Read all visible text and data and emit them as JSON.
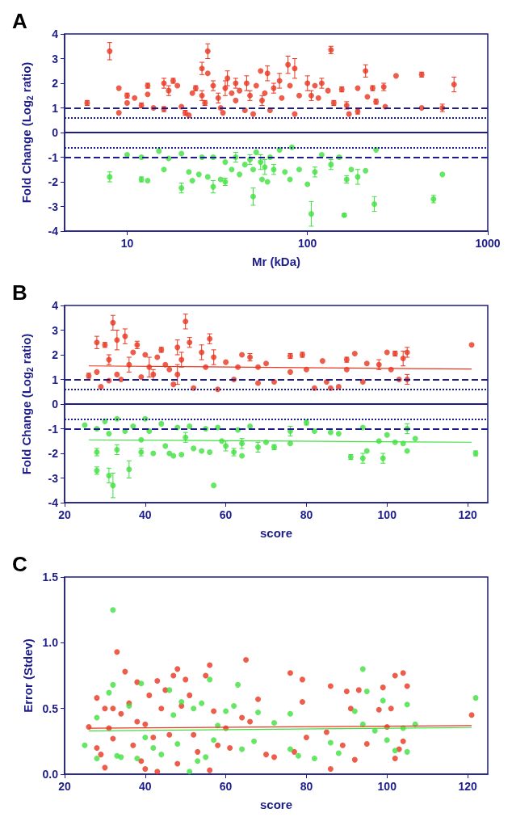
{
  "chart_data": [
    {
      "type": "scatter",
      "title": "A",
      "xlabel": "Mr (kDa)",
      "ylabel": "Fold Change (Log$_{2}$ ratio)",
      "log": "x",
      "xlim": [
        4.5,
        1000
      ],
      "xticks": [
        10,
        100,
        1000
      ],
      "ylim": [
        -4,
        4
      ],
      "yticks": [
        -4,
        -3,
        -2,
        -1,
        0,
        1,
        2,
        3,
        4
      ],
      "grid": false,
      "marker": "circle",
      "ref_lines": [
        {
          "axis": "y",
          "value": 1,
          "line_style": "dashed",
          "color": "#1c1c8a"
        },
        {
          "axis": "y",
          "value": 0.6,
          "line_style": "dotted",
          "color": "#1c1c8a"
        },
        {
          "axis": "y",
          "value": 0,
          "line_style": "solid",
          "color": "#1c1c8a"
        },
        {
          "axis": "y",
          "value": -0.6,
          "line_style": "dotted",
          "color": "#1c1c8a"
        },
        {
          "axis": "y",
          "value": -1,
          "line_style": "dashed",
          "color": "#1c1c8a"
        }
      ],
      "series": [
        {
          "color": "#e8351f",
          "x": [
            6,
            8,
            9,
            9,
            10,
            10,
            11,
            12,
            13,
            13,
            14,
            16,
            16,
            17,
            18,
            19,
            20,
            21,
            22,
            23,
            24,
            26,
            26,
            27,
            28,
            28,
            30,
            32,
            33,
            34,
            35,
            36,
            38,
            40,
            40,
            42,
            45,
            46,
            48,
            50,
            52,
            55,
            56,
            58,
            60,
            62,
            65,
            70,
            72,
            78,
            80,
            85,
            85,
            90,
            100,
            105,
            110,
            115,
            120,
            130,
            135,
            140,
            155,
            165,
            170,
            190,
            190,
            210,
            215,
            230,
            240,
            265,
            270,
            310,
            430,
            430,
            560,
            650
          ],
          "values": [
            1.2,
            3.3,
            0.8,
            1.8,
            1.5,
            1.2,
            1.4,
            1.1,
            1.9,
            1.55,
            1.0,
            2.0,
            0.95,
            1.7,
            2.1,
            1.9,
            1.05,
            0.8,
            0.7,
            1.6,
            1.8,
            2.6,
            1.5,
            1.2,
            3.3,
            2.4,
            1.9,
            1.4,
            1.0,
            0.8,
            1.8,
            2.2,
            1.6,
            2.0,
            1.3,
            1.7,
            0.9,
            2.0,
            1.5,
            0.75,
            1.9,
            2.5,
            1.3,
            1.6,
            2.4,
            0.9,
            1.8,
            2.1,
            1.4,
            2.75,
            1.9,
            2.6,
            0.75,
            1.5,
            2.0,
            1.5,
            1.9,
            1.4,
            2.0,
            1.7,
            3.35,
            1.2,
            1.75,
            1.1,
            0.75,
            1.8,
            0.85,
            2.5,
            1.45,
            1.8,
            1.25,
            1.85,
            1.05,
            2.3,
            2.35,
            1.0,
            1.0,
            1.95
          ],
          "errors": [
            0.1,
            0.35,
            null,
            null,
            0.1,
            null,
            null,
            0.1,
            0.1,
            null,
            null,
            0.2,
            0.1,
            0.2,
            0.1,
            null,
            null,
            0.1,
            null,
            null,
            0.1,
            0.25,
            0.2,
            0.1,
            0.3,
            null,
            0.2,
            0.2,
            null,
            null,
            0.3,
            0.3,
            null,
            0.2,
            null,
            null,
            null,
            0.3,
            0.2,
            null,
            null,
            null,
            0.2,
            null,
            0.3,
            null,
            0.2,
            0.3,
            null,
            0.35,
            null,
            0.4,
            null,
            null,
            0.3,
            0.2,
            null,
            null,
            0.2,
            null,
            0.15,
            0.1,
            0.1,
            0.15,
            null,
            null,
            0.1,
            0.25,
            null,
            0.1,
            0.1,
            0.15,
            null,
            null,
            0.1,
            null,
            0.15,
            0.3
          ]
        },
        {
          "color": "#3fe03f",
          "x": [
            8,
            10,
            12,
            12,
            13,
            15,
            16,
            17,
            20,
            20,
            22,
            23,
            25,
            26,
            28,
            30,
            30,
            33,
            35,
            35,
            38,
            40,
            42,
            45,
            48,
            50,
            50,
            52,
            55,
            56,
            58,
            60,
            62,
            65,
            70,
            75,
            80,
            82,
            90,
            100,
            105,
            110,
            120,
            135,
            150,
            160,
            165,
            175,
            190,
            210,
            235,
            240,
            500,
            560
          ],
          "values": [
            -1.8,
            -0.9,
            -1.0,
            -1.9,
            -1.95,
            -0.75,
            -1.5,
            -1.05,
            -2.25,
            -0.85,
            -1.6,
            -1.95,
            -1.7,
            -1.0,
            -1.8,
            -2.2,
            -1.0,
            -1.9,
            -2.0,
            -1.2,
            -1.5,
            -1.0,
            -1.7,
            -1.3,
            -1.1,
            -2.6,
            -1.5,
            -0.8,
            -1.2,
            -1.9,
            -1.4,
            -2.0,
            -1.0,
            -1.5,
            -0.7,
            -1.6,
            -1.9,
            -0.6,
            -1.5,
            -2.1,
            -3.3,
            -1.6,
            -0.9,
            -1.3,
            -1.0,
            -3.35,
            -1.9,
            -1.5,
            -1.8,
            -1.55,
            -2.9,
            -0.7,
            -2.7,
            -1.7
          ],
          "errors": [
            0.2,
            null,
            null,
            0.1,
            null,
            null,
            null,
            null,
            0.2,
            null,
            null,
            null,
            null,
            null,
            null,
            0.25,
            null,
            null,
            0.15,
            null,
            null,
            0.2,
            null,
            null,
            0.2,
            0.35,
            null,
            null,
            0.3,
            null,
            0.3,
            null,
            null,
            0.2,
            null,
            null,
            null,
            null,
            null,
            null,
            0.5,
            0.2,
            null,
            0.2,
            null,
            0.05,
            0.15,
            null,
            0.3,
            null,
            0.3,
            null,
            0.15,
            null
          ]
        }
      ]
    },
    {
      "type": "scatter",
      "title": "B",
      "xlabel": "score",
      "ylabel": "Fold Change (Log$_{2}$ ratio)",
      "xlim": [
        20,
        125
      ],
      "xticks": [
        20,
        40,
        60,
        80,
        100,
        120
      ],
      "ylim": [
        -4,
        4
      ],
      "yticks": [
        -4,
        -3,
        -2,
        -1,
        0,
        1,
        2,
        3,
        4
      ],
      "grid": false,
      "marker": "circle",
      "ref_lines": [
        {
          "axis": "y",
          "value": 1,
          "line_style": "dashed",
          "color": "#1c1c8a"
        },
        {
          "axis": "y",
          "value": 0.6,
          "line_style": "dotted",
          "color": "#1c1c8a"
        },
        {
          "axis": "y",
          "value": 0,
          "line_style": "solid",
          "color": "#1c1c8a"
        },
        {
          "axis": "y",
          "value": -0.6,
          "line_style": "dotted",
          "color": "#1c1c8a"
        },
        {
          "axis": "y",
          "value": -1,
          "line_style": "dashed",
          "color": "#1c1c8a"
        }
      ],
      "series": [
        {
          "color": "#e8351f",
          "x": [
            26,
            28,
            28,
            29,
            30,
            31,
            31,
            32,
            33,
            33,
            34,
            35,
            36,
            37,
            38,
            39,
            40,
            41,
            42,
            43,
            44,
            45,
            46,
            47,
            48,
            48,
            49,
            50,
            51,
            52,
            54,
            55,
            56,
            57,
            58,
            60,
            62,
            63,
            64,
            66,
            68,
            68,
            70,
            72,
            76,
            76,
            79,
            80,
            82,
            84,
            85,
            86,
            88,
            90,
            90,
            92,
            94,
            95,
            98,
            100,
            101,
            102,
            103,
            104,
            105,
            105,
            121
          ],
          "values": [
            1.15,
            2.5,
            1.3,
            0.7,
            2.4,
            1.8,
            0.95,
            3.3,
            2.6,
            1.2,
            1.0,
            2.75,
            1.6,
            2.1,
            2.4,
            1.1,
            2.0,
            1.5,
            1.2,
            1.9,
            2.2,
            1.6,
            1.4,
            0.8,
            2.3,
            1.2,
            1.8,
            3.35,
            2.5,
            0.65,
            2.1,
            1.5,
            2.65,
            1.9,
            0.6,
            1.7,
            1.0,
            1.5,
            2.0,
            1.9,
            1.5,
            0.85,
            1.65,
            0.9,
            1.95,
            1.3,
            2.0,
            1.4,
            0.65,
            1.75,
            0.9,
            0.65,
            0.7,
            1.8,
            1.4,
            2.05,
            0.9,
            1.65,
            1.6,
            2.1,
            1.4,
            2.05,
            1.0,
            1.85,
            1.0,
            2.1,
            2.4
          ],
          "errors": [
            0.1,
            0.25,
            null,
            null,
            0.1,
            0.2,
            null,
            0.3,
            0.4,
            null,
            null,
            0.3,
            0.3,
            null,
            0.15,
            null,
            null,
            0.4,
            0.2,
            null,
            0.1,
            null,
            null,
            null,
            0.3,
            0.4,
            0.3,
            0.3,
            0.2,
            null,
            0.3,
            null,
            0.2,
            0.3,
            null,
            null,
            null,
            null,
            null,
            0.15,
            null,
            null,
            null,
            null,
            0.1,
            null,
            0.1,
            null,
            null,
            null,
            null,
            null,
            null,
            0.1,
            null,
            null,
            null,
            null,
            0.2,
            null,
            null,
            0.1,
            null,
            0.3,
            0.2,
            0.2,
            null
          ]
        },
        {
          "color": "#3fe03f",
          "x": [
            25,
            28,
            28,
            28,
            30,
            31,
            31,
            32,
            33,
            33,
            35,
            36,
            37,
            39,
            39,
            40,
            41,
            42,
            44,
            45,
            46,
            47,
            48,
            49,
            50,
            51,
            52,
            54,
            55,
            56,
            57,
            58,
            59,
            60,
            62,
            63,
            64,
            64,
            66,
            68,
            70,
            72,
            76,
            76,
            80,
            82,
            86,
            88,
            91,
            94,
            94,
            95,
            98,
            99,
            100,
            102,
            104,
            105,
            105,
            107,
            122
          ],
          "values": [
            -0.85,
            -1.95,
            -2.7,
            -1.0,
            -0.7,
            -2.9,
            -1.2,
            -3.3,
            -1.85,
            -0.6,
            -1.1,
            -2.65,
            -0.9,
            -1.95,
            -1.45,
            -0.6,
            -1.1,
            -2.0,
            -0.8,
            -1.7,
            -2.0,
            -2.1,
            -0.95,
            -2.05,
            -1.35,
            -0.9,
            -1.8,
            -1.9,
            -1.0,
            -1.95,
            -3.3,
            -0.95,
            -1.5,
            -1.7,
            -1.95,
            -1.05,
            -1.6,
            -2.1,
            -0.9,
            -1.75,
            -1.55,
            -1.75,
            -1.1,
            -1.6,
            -0.75,
            -1.1,
            -1.15,
            -1.2,
            -2.15,
            -0.95,
            -2.2,
            -1.9,
            -1.5,
            -2.2,
            -1.25,
            -1.55,
            -1.6,
            -1.0,
            -1.9,
            -1.4,
            -2.0
          ],
          "errors": [
            null,
            0.15,
            0.15,
            null,
            null,
            0.3,
            null,
            0.5,
            0.2,
            null,
            null,
            0.35,
            null,
            0.15,
            null,
            null,
            null,
            null,
            null,
            null,
            null,
            null,
            null,
            null,
            0.2,
            null,
            null,
            null,
            null,
            null,
            null,
            null,
            null,
            0.2,
            0.15,
            null,
            0.2,
            null,
            null,
            0.2,
            null,
            0.1,
            0.2,
            null,
            0.1,
            null,
            null,
            null,
            0.1,
            null,
            0.2,
            null,
            null,
            0.2,
            null,
            null,
            null,
            0.2,
            null,
            null,
            0.1
          ]
        },
        {
          "type": "line",
          "marker": "none",
          "color": "#e8351f",
          "x": [
            26,
            121
          ],
          "values": [
            1.55,
            1.42
          ]
        },
        {
          "type": "line",
          "marker": "none",
          "color": "#3fe03f",
          "x": [
            26,
            121
          ],
          "values": [
            -1.45,
            -1.55
          ]
        }
      ]
    },
    {
      "type": "scatter",
      "title": "C",
      "xlabel": "score",
      "ylabel": "Error (Stdev)",
      "xlim": [
        20,
        125
      ],
      "xticks": [
        20,
        40,
        60,
        80,
        100,
        120
      ],
      "ylim": [
        0,
        1.5
      ],
      "yticks": [
        {
          "value": 0,
          "label": "0.0"
        },
        {
          "value": 0.5,
          "label": "0.5"
        },
        {
          "value": 1,
          "label": "1.0"
        },
        {
          "value": 1.5,
          "label": "1.5"
        }
      ],
      "grid": false,
      "marker": "circle",
      "series": [
        {
          "color": "#e8351f",
          "x": [
            26,
            28,
            28,
            29,
            30,
            30,
            31,
            32,
            32,
            33,
            34,
            35,
            36,
            37,
            38,
            38,
            39,
            40,
            40,
            41,
            42,
            43,
            43,
            44,
            45,
            46,
            47,
            48,
            48,
            49,
            50,
            51,
            52,
            53,
            55,
            56,
            56,
            57,
            58,
            60,
            61,
            64,
            65,
            66,
            68,
            70,
            72,
            76,
            77,
            79,
            79,
            80,
            85,
            86,
            86,
            89,
            90,
            91,
            92,
            93,
            95,
            98,
            99,
            100,
            101,
            102,
            102,
            103,
            104,
            104,
            105,
            121
          ],
          "values": [
            0.36,
            0.58,
            0.2,
            0.15,
            0.5,
            0.05,
            0.35,
            0.5,
            0.27,
            0.93,
            0.46,
            0.78,
            0.54,
            0.22,
            0.7,
            0.4,
            0.1,
            0.38,
            0.04,
            0.6,
            0.28,
            0.71,
            0.02,
            0.5,
            0.64,
            0.3,
            0.75,
            0.8,
            0.08,
            0.52,
            0.72,
            0.6,
            0.3,
            0.17,
            0.75,
            0.83,
            0.03,
            0.48,
            0.22,
            0.35,
            0.2,
            0.43,
            0.87,
            0.4,
            0.57,
            0.15,
            0.13,
            0.77,
            0.17,
            0.72,
            0.55,
            0.28,
            0.32,
            0.67,
            0.04,
            0.22,
            0.63,
            0.5,
            0.11,
            0.64,
            0.23,
            0.49,
            0.66,
            0.36,
            0.5,
            0.75,
            0.12,
            0.19,
            0.77,
            0.25,
            0.67,
            0.45
          ]
        },
        {
          "color": "#3fe03f",
          "x": [
            25,
            28,
            28,
            31,
            32,
            32,
            33,
            34,
            36,
            38,
            39,
            40,
            42,
            44,
            46,
            47,
            48,
            49,
            51,
            52,
            53,
            54,
            55,
            56,
            57,
            58,
            60,
            62,
            63,
            64,
            67,
            68,
            72,
            76,
            76,
            78,
            82,
            86,
            88,
            92,
            94,
            94,
            95,
            97,
            99,
            100,
            102,
            104,
            105,
            105,
            107,
            122
          ],
          "values": [
            0.22,
            0.43,
            0.12,
            0.62,
            1.25,
            0.68,
            0.14,
            0.13,
            0.52,
            0.12,
            0.69,
            0.28,
            0.2,
            0.15,
            0.64,
            0.45,
            0.23,
            0.55,
            0.02,
            0.5,
            0.1,
            0.54,
            0.13,
            0.72,
            0.26,
            0.37,
            0.48,
            0.52,
            0.68,
            0.19,
            0.25,
            0.47,
            0.39,
            0.46,
            0.19,
            0.14,
            0.12,
            0.24,
            0.16,
            0.48,
            0.8,
            0.38,
            0.63,
            0.33,
            0.56,
            0.26,
            0.18,
            0.35,
            0.53,
            0.17,
            0.38,
            0.58
          ]
        },
        {
          "type": "line",
          "marker": "none",
          "color": "#e8351f",
          "x": [
            26,
            121
          ],
          "values": [
            0.35,
            0.37
          ]
        },
        {
          "type": "line",
          "marker": "none",
          "color": "#3fe03f",
          "x": [
            26,
            121
          ],
          "values": [
            0.33,
            0.355
          ]
        }
      ]
    }
  ]
}
